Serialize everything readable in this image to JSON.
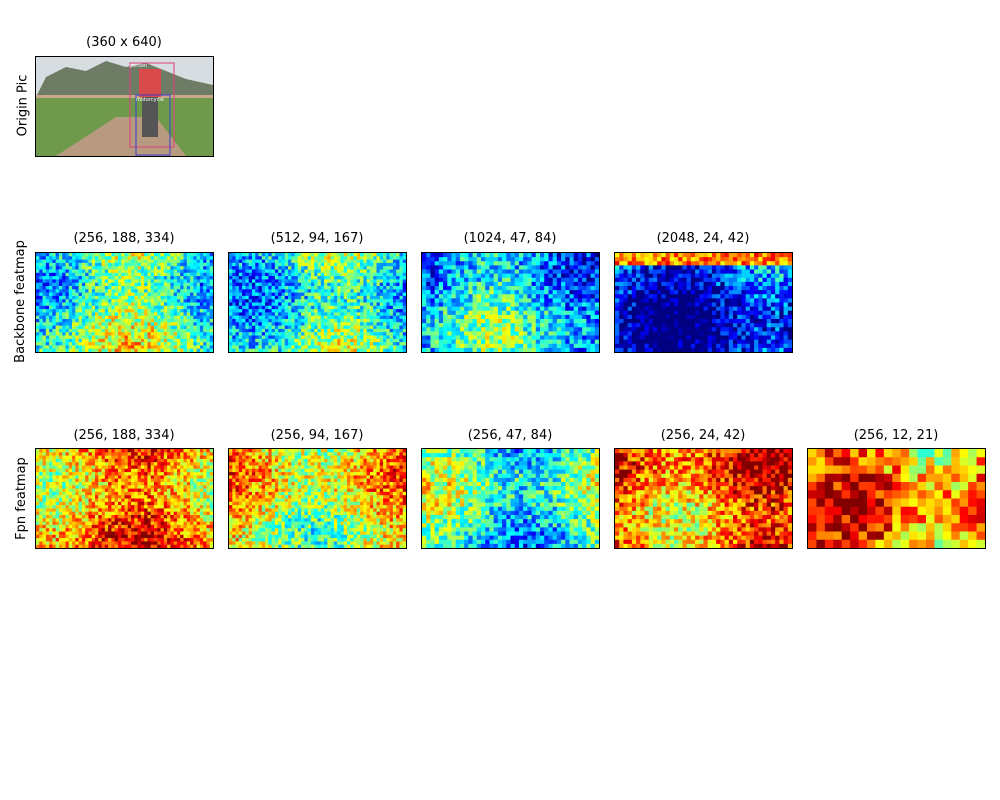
{
  "figure": {
    "rows": [
      {
        "label": "Origin Pic",
        "panels": [
          {
            "title": "(360 x 640)",
            "kind": "photo",
            "image": "outdoor photo: mountain, road, person riding motorcycle with detection boxes"
          }
        ]
      },
      {
        "label": "Backbone featmap",
        "panels": [
          {
            "title": "(256, 188, 334)",
            "kind": "heatmap"
          },
          {
            "title": "(512, 94, 167)",
            "kind": "heatmap"
          },
          {
            "title": "(1024, 47, 84)",
            "kind": "heatmap"
          },
          {
            "title": "(2048, 24, 42)",
            "kind": "heatmap"
          }
        ]
      },
      {
        "label": "Fpn featmap",
        "panels": [
          {
            "title": "(256, 188, 334)",
            "kind": "heatmap"
          },
          {
            "title": "(256, 94, 167)",
            "kind": "heatmap"
          },
          {
            "title": "(256, 47, 84)",
            "kind": "heatmap"
          },
          {
            "title": "(256, 24, 42)",
            "kind": "heatmap"
          },
          {
            "title": "(256, 12, 21)",
            "kind": "heatmap"
          }
        ]
      }
    ],
    "photo_labels": [
      "person",
      "motorcycle"
    ],
    "colormap": "jet",
    "colors": {
      "jet_low": "#00007f",
      "jet_mid": "#7fff7f",
      "jet_high": "#7f0000",
      "box_person": "#e0407a",
      "box_motorcycle": "#3a3ad0"
    }
  }
}
